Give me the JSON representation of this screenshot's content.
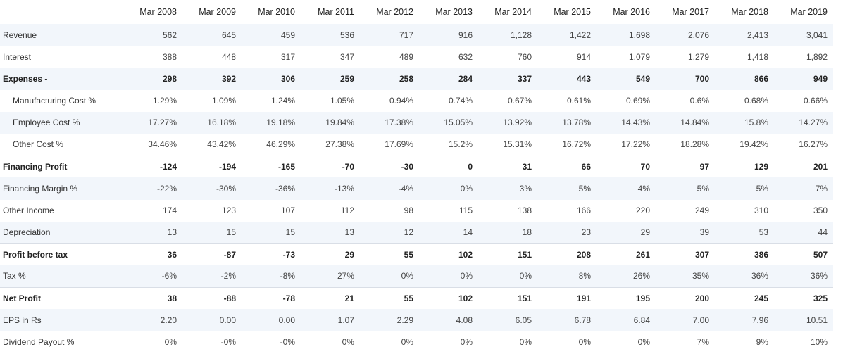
{
  "headers": [
    "",
    "Mar 2008",
    "Mar 2009",
    "Mar 2010",
    "Mar 2011",
    "Mar 2012",
    "Mar 2013",
    "Mar 2014",
    "Mar 2015",
    "Mar 2016",
    "Mar 2017",
    "Mar 2018",
    "Mar 2019"
  ],
  "rows": [
    {
      "label": "Revenue",
      "cells": [
        "562",
        "645",
        "459",
        "536",
        "717",
        "916",
        "1,128",
        "1,422",
        "1,698",
        "2,076",
        "2,413",
        "3,041"
      ]
    },
    {
      "label": "Interest",
      "cells": [
        "388",
        "448",
        "317",
        "347",
        "489",
        "632",
        "760",
        "914",
        "1,079",
        "1,279",
        "1,418",
        "1,892"
      ]
    },
    {
      "label": "Expenses -",
      "cells": [
        "298",
        "392",
        "306",
        "259",
        "258",
        "284",
        "337",
        "443",
        "549",
        "700",
        "866",
        "949"
      ]
    },
    {
      "label": "Manufacturing Cost %",
      "cells": [
        "1.29%",
        "1.09%",
        "1.24%",
        "1.05%",
        "0.94%",
        "0.74%",
        "0.67%",
        "0.61%",
        "0.69%",
        "0.6%",
        "0.68%",
        "0.66%"
      ]
    },
    {
      "label": "Employee Cost %",
      "cells": [
        "17.27%",
        "16.18%",
        "19.18%",
        "19.84%",
        "17.38%",
        "15.05%",
        "13.92%",
        "13.78%",
        "14.43%",
        "14.84%",
        "15.8%",
        "14.27%"
      ]
    },
    {
      "label": "Other Cost %",
      "cells": [
        "34.46%",
        "43.42%",
        "46.29%",
        "27.38%",
        "17.69%",
        "15.2%",
        "15.31%",
        "16.72%",
        "17.22%",
        "18.28%",
        "19.42%",
        "16.27%"
      ]
    },
    {
      "label": "Financing Profit",
      "cells": [
        "-124",
        "-194",
        "-165",
        "-70",
        "-30",
        "0",
        "31",
        "66",
        "70",
        "97",
        "129",
        "201"
      ]
    },
    {
      "label": "Financing Margin %",
      "cells": [
        "-22%",
        "-30%",
        "-36%",
        "-13%",
        "-4%",
        "0%",
        "3%",
        "5%",
        "4%",
        "5%",
        "5%",
        "7%"
      ]
    },
    {
      "label": "Other Income",
      "cells": [
        "174",
        "123",
        "107",
        "112",
        "98",
        "115",
        "138",
        "166",
        "220",
        "249",
        "310",
        "350"
      ]
    },
    {
      "label": "Depreciation",
      "cells": [
        "13",
        "15",
        "15",
        "13",
        "12",
        "14",
        "18",
        "23",
        "29",
        "39",
        "53",
        "44"
      ]
    },
    {
      "label": "Profit before tax",
      "cells": [
        "36",
        "-87",
        "-73",
        "29",
        "55",
        "102",
        "151",
        "208",
        "261",
        "307",
        "386",
        "507"
      ]
    },
    {
      "label": "Tax %",
      "cells": [
        "-6%",
        "-2%",
        "-8%",
        "27%",
        "0%",
        "0%",
        "0%",
        "8%",
        "26%",
        "35%",
        "36%",
        "36%"
      ]
    },
    {
      "label": "Net Profit",
      "cells": [
        "38",
        "-88",
        "-78",
        "21",
        "55",
        "102",
        "151",
        "191",
        "195",
        "200",
        "245",
        "325"
      ]
    },
    {
      "label": "EPS in Rs",
      "cells": [
        "2.20",
        "0.00",
        "0.00",
        "1.07",
        "2.29",
        "4.08",
        "6.05",
        "6.78",
        "6.84",
        "7.00",
        "7.96",
        "10.51"
      ]
    },
    {
      "label": "Dividend Payout %",
      "cells": [
        "0%",
        "-0%",
        "-0%",
        "0%",
        "0%",
        "0%",
        "0%",
        "0%",
        "0%",
        "7%",
        "9%",
        "10%"
      ]
    }
  ]
}
